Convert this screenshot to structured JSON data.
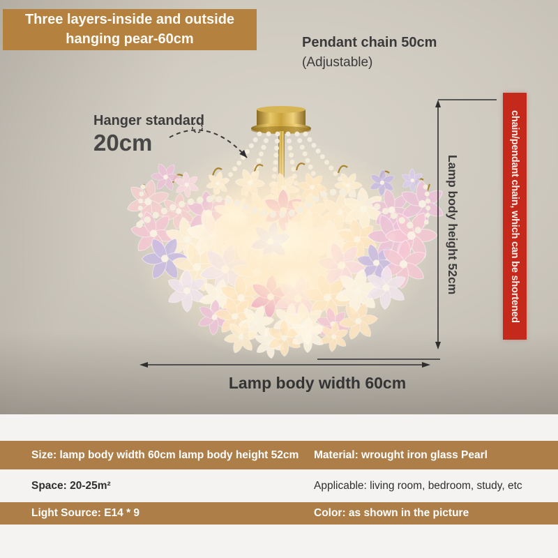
{
  "badge": {
    "line1": "Three layers-inside and outside",
    "line2": "hanging pear-60cm"
  },
  "annotations": {
    "pendant_chain_line1": "Pendant chain 50cm",
    "pendant_chain_line2": "(Adjustable)",
    "hanger_label": "Hanger standard",
    "hanger_value": "20cm",
    "side_banner": "chain/pendant chain, which can be shortened",
    "height_dim": "Lamp body height 52cm",
    "width_dim": "Lamp body width 60cm"
  },
  "specs": {
    "rows": [
      {
        "left": "Size: lamp body width 60cm lamp body height 52cm",
        "right": "Material: wrought iron glass Pearl"
      },
      {
        "left": "Space: 20-25m²",
        "right": "Applicable: living room, bedroom, study, etc"
      },
      {
        "left": "Light Source: E14 * 9",
        "right": "Color: as shown in the picture"
      }
    ]
  },
  "colors": {
    "accent_brown": "#b5813f",
    "row_brown": "#ae7e49",
    "banner_red": "#c5291c",
    "gold": "#c9a13b",
    "pearl": "#f5eedf",
    "background": "#cdc8be",
    "text": "#3a3a3a"
  }
}
